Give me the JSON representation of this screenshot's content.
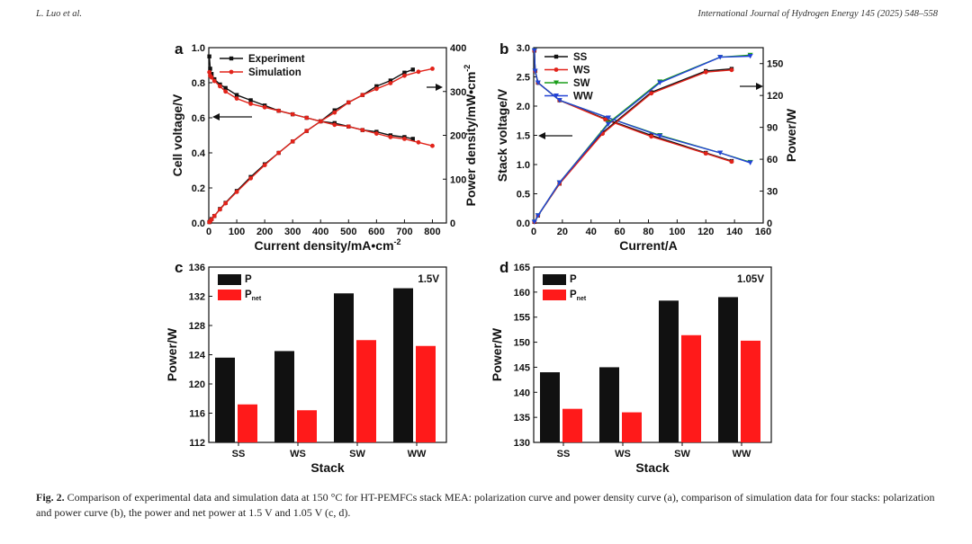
{
  "header": {
    "left": "L. Luo et al.",
    "right": "International Journal of Hydrogen Energy 145 (2025) 548–558"
  },
  "caption": {
    "label": "Fig. 2.",
    "text": "Comparison of experimental data and simulation data at 150 °C for HT-PEMFCs stack MEA: polarization curve and power density curve (a), comparison of simulation data for four stacks: polarization and power curve (b), the power and net power at 1.5 V and 1.05 V (c, d)."
  },
  "colors": {
    "black": "#111111",
    "red": "#e2231a",
    "green": "#1a9e1a",
    "blue": "#2343d6"
  },
  "chart_data": [
    {
      "panel": "a",
      "type": "line",
      "xlabel": "Current density/mA•cm",
      "xlabel_sup": "-2",
      "ylabel": "Cell voltage/V",
      "y2label": "Power density/mW•cm",
      "y2label_sup": "-2",
      "xlim": [
        0,
        850
      ],
      "ylim": [
        0,
        1.0
      ],
      "y2lim": [
        0,
        400
      ],
      "xticks": [
        0,
        100,
        200,
        300,
        400,
        500,
        600,
        700,
        800
      ],
      "yticks": [
        0.0,
        0.2,
        0.4,
        0.6,
        0.8,
        1.0
      ],
      "y2ticks": [
        0,
        100,
        200,
        300,
        400
      ],
      "legend": [
        "Experiment",
        "Simulation"
      ],
      "series": [
        {
          "name": "Experiment",
          "axis": "left",
          "color": "#111111",
          "x": [
            2,
            5,
            10,
            20,
            40,
            60,
            100,
            150,
            200,
            250,
            300,
            350,
            400,
            450,
            500,
            550,
            600,
            650,
            700,
            730
          ],
          "y": [
            0.95,
            0.88,
            0.85,
            0.82,
            0.79,
            0.77,
            0.73,
            0.7,
            0.67,
            0.64,
            0.62,
            0.6,
            0.58,
            0.57,
            0.55,
            0.53,
            0.52,
            0.5,
            0.49,
            0.48
          ]
        },
        {
          "name": "Simulation",
          "axis": "left",
          "color": "#e2231a",
          "x": [
            2,
            5,
            10,
            20,
            40,
            60,
            100,
            150,
            200,
            250,
            300,
            350,
            400,
            450,
            500,
            550,
            600,
            650,
            700,
            750,
            800
          ],
          "y": [
            0.86,
            0.84,
            0.83,
            0.81,
            0.78,
            0.75,
            0.71,
            0.68,
            0.66,
            0.64,
            0.62,
            0.6,
            0.58,
            0.56,
            0.55,
            0.53,
            0.51,
            0.49,
            0.48,
            0.46,
            0.44
          ]
        },
        {
          "name": "Experiment power",
          "axis": "right",
          "color": "#111111",
          "x": [
            2,
            5,
            10,
            20,
            40,
            60,
            100,
            150,
            200,
            250,
            300,
            350,
            400,
            450,
            500,
            550,
            600,
            650,
            700,
            730
          ],
          "y": [
            2,
            4,
            9,
            16,
            32,
            46,
            73,
            105,
            134,
            160,
            186,
            210,
            232,
            257,
            275,
            292,
            312,
            325,
            343,
            350
          ]
        },
        {
          "name": "Simulation power",
          "axis": "right",
          "color": "#e2231a",
          "x": [
            2,
            5,
            10,
            20,
            40,
            60,
            100,
            150,
            200,
            250,
            300,
            350,
            400,
            450,
            500,
            550,
            600,
            650,
            700,
            750,
            800
          ],
          "y": [
            2,
            4,
            8,
            16,
            31,
            45,
            71,
            102,
            132,
            160,
            186,
            210,
            232,
            252,
            275,
            292,
            306,
            319,
            336,
            345,
            352
          ]
        }
      ]
    },
    {
      "panel": "b",
      "type": "line",
      "xlabel": "Current/A",
      "ylabel": "Stack voltage/V",
      "y2label": "Power/W",
      "xlim": [
        0,
        160
      ],
      "ylim": [
        0,
        3.0
      ],
      "y2lim": [
        0,
        165
      ],
      "xticks": [
        0,
        20,
        40,
        60,
        80,
        100,
        120,
        140,
        160
      ],
      "yticks": [
        0.0,
        0.5,
        1.0,
        1.5,
        2.0,
        2.5,
        3.0
      ],
      "y2ticks": [
        0,
        30,
        60,
        90,
        120,
        150
      ],
      "legend": [
        "SS",
        "WS",
        "SW",
        "WW"
      ],
      "series": [
        {
          "name": "SS",
          "axis": "left",
          "color": "#111111",
          "x": [
            0.5,
            1,
            3,
            18,
            50,
            82,
            120,
            138
          ],
          "y": [
            2.95,
            2.6,
            2.4,
            2.1,
            1.78,
            1.5,
            1.2,
            1.06
          ]
        },
        {
          "name": "WS",
          "axis": "left",
          "color": "#e2231a",
          "x": [
            0.5,
            1,
            3,
            18,
            50,
            82,
            120,
            138
          ],
          "y": [
            2.95,
            2.6,
            2.4,
            2.1,
            1.77,
            1.48,
            1.19,
            1.05
          ]
        },
        {
          "name": "SW",
          "axis": "left",
          "color": "#1a9e1a",
          "x": [
            0.5,
            1,
            3,
            18,
            52,
            88,
            130,
            151
          ],
          "y": [
            2.95,
            2.6,
            2.4,
            2.1,
            1.8,
            1.5,
            1.2,
            1.04
          ]
        },
        {
          "name": "WW",
          "axis": "left",
          "color": "#2343d6",
          "x": [
            0.5,
            1,
            3,
            18,
            52,
            88,
            130,
            151
          ],
          "y": [
            2.95,
            2.6,
            2.4,
            2.1,
            1.8,
            1.49,
            1.2,
            1.03
          ]
        },
        {
          "name": "SS power",
          "axis": "right",
          "color": "#111111",
          "x": [
            0.5,
            3,
            18,
            48,
            82,
            120,
            138
          ],
          "y": [
            1,
            7,
            37,
            85,
            123,
            143,
            145
          ]
        },
        {
          "name": "WS power",
          "axis": "right",
          "color": "#e2231a",
          "x": [
            0.5,
            3,
            18,
            48,
            82,
            120,
            138
          ],
          "y": [
            1,
            7,
            37,
            84,
            122,
            142,
            144
          ]
        },
        {
          "name": "SW power",
          "axis": "right",
          "color": "#1a9e1a",
          "x": [
            0.5,
            3,
            18,
            52,
            88,
            130,
            151
          ],
          "y": [
            1,
            7,
            38,
            94,
            133,
            156,
            158
          ]
        },
        {
          "name": "WW power",
          "axis": "right",
          "color": "#2343d6",
          "x": [
            0.5,
            3,
            18,
            52,
            88,
            130,
            151
          ],
          "y": [
            1,
            7,
            38,
            93,
            132,
            156,
            157
          ]
        }
      ]
    },
    {
      "panel": "c",
      "type": "bar",
      "annotation": "1.5V",
      "xlabel": "Stack",
      "ylabel": "Power/W",
      "ylim": [
        112,
        136
      ],
      "yticks": [
        112,
        116,
        120,
        124,
        128,
        132,
        136
      ],
      "categories": [
        "SS",
        "WS",
        "SW",
        "WW"
      ],
      "series": [
        {
          "name": "P",
          "color": "#111111",
          "values": [
            123.6,
            124.5,
            132.4,
            133.1
          ]
        },
        {
          "name": "P",
          "sub": "net",
          "color": "#ff1a1a",
          "values": [
            117.2,
            116.4,
            126.0,
            125.2
          ]
        }
      ]
    },
    {
      "panel": "d",
      "type": "bar",
      "annotation": "1.05V",
      "xlabel": "Stack",
      "ylabel": "Power/W",
      "ylim": [
        130,
        165
      ],
      "yticks": [
        130,
        135,
        140,
        145,
        150,
        155,
        160,
        165
      ],
      "categories": [
        "SS",
        "WS",
        "SW",
        "WW"
      ],
      "series": [
        {
          "name": "P",
          "color": "#111111",
          "values": [
            144.0,
            145.0,
            158.3,
            159.0
          ]
        },
        {
          "name": "P",
          "sub": "net",
          "color": "#ff1a1a",
          "values": [
            136.7,
            136.0,
            151.4,
            150.3
          ]
        }
      ]
    }
  ]
}
